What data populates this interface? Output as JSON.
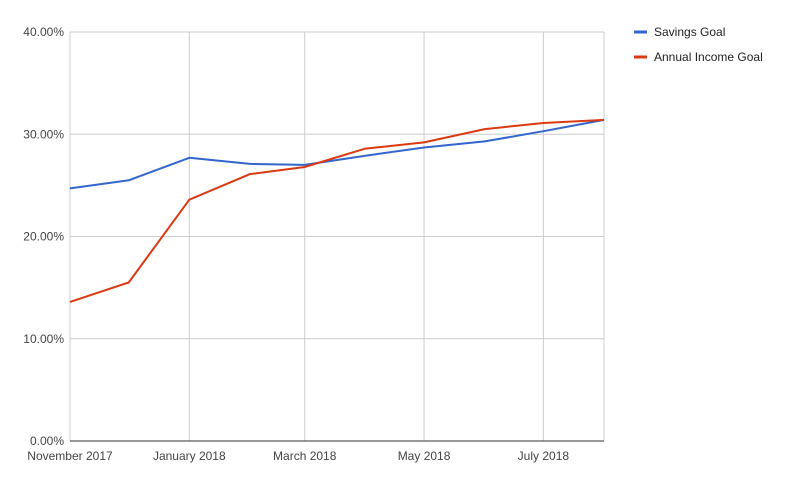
{
  "chart_data": {
    "type": "line",
    "title": "",
    "xlabel": "",
    "ylabel": "",
    "x": [
      "2017-11-01",
      "2017-12-01",
      "2018-01-01",
      "2018-02-01",
      "2018-03-01",
      "2018-04-01",
      "2018-05-01",
      "2018-06-01",
      "2018-07-01",
      "2018-08-01"
    ],
    "x_ticks": [
      {
        "date": "2017-11-01",
        "label": "November 2017"
      },
      {
        "date": "2018-01-01",
        "label": "January 2018"
      },
      {
        "date": "2018-03-01",
        "label": "March 2018"
      },
      {
        "date": "2018-05-01",
        "label": "May 2018"
      },
      {
        "date": "2018-07-01",
        "label": "July 2018"
      }
    ],
    "xlim": [
      "2017-11-01",
      "2018-08-01"
    ],
    "ylim": [
      0,
      40
    ],
    "y_ticks": [
      {
        "value": 0,
        "label": "0.00%"
      },
      {
        "value": 10,
        "label": "10.00%"
      },
      {
        "value": 20,
        "label": "20.00%"
      },
      {
        "value": 30,
        "label": "30.00%"
      },
      {
        "value": 40,
        "label": "40.00%"
      }
    ],
    "grid": true,
    "legend_position": "right",
    "series": [
      {
        "name": "Savings Goal",
        "color": "#3366cc",
        "values": [
          24.7,
          25.5,
          27.7,
          27.1,
          27.0,
          27.9,
          28.7,
          29.3,
          30.3,
          31.4
        ]
      },
      {
        "name": "Annual Income Goal",
        "color": "#dc3912",
        "values": [
          13.6,
          15.5,
          23.6,
          26.1,
          26.8,
          28.6,
          29.2,
          30.5,
          31.1,
          31.4
        ]
      }
    ]
  }
}
